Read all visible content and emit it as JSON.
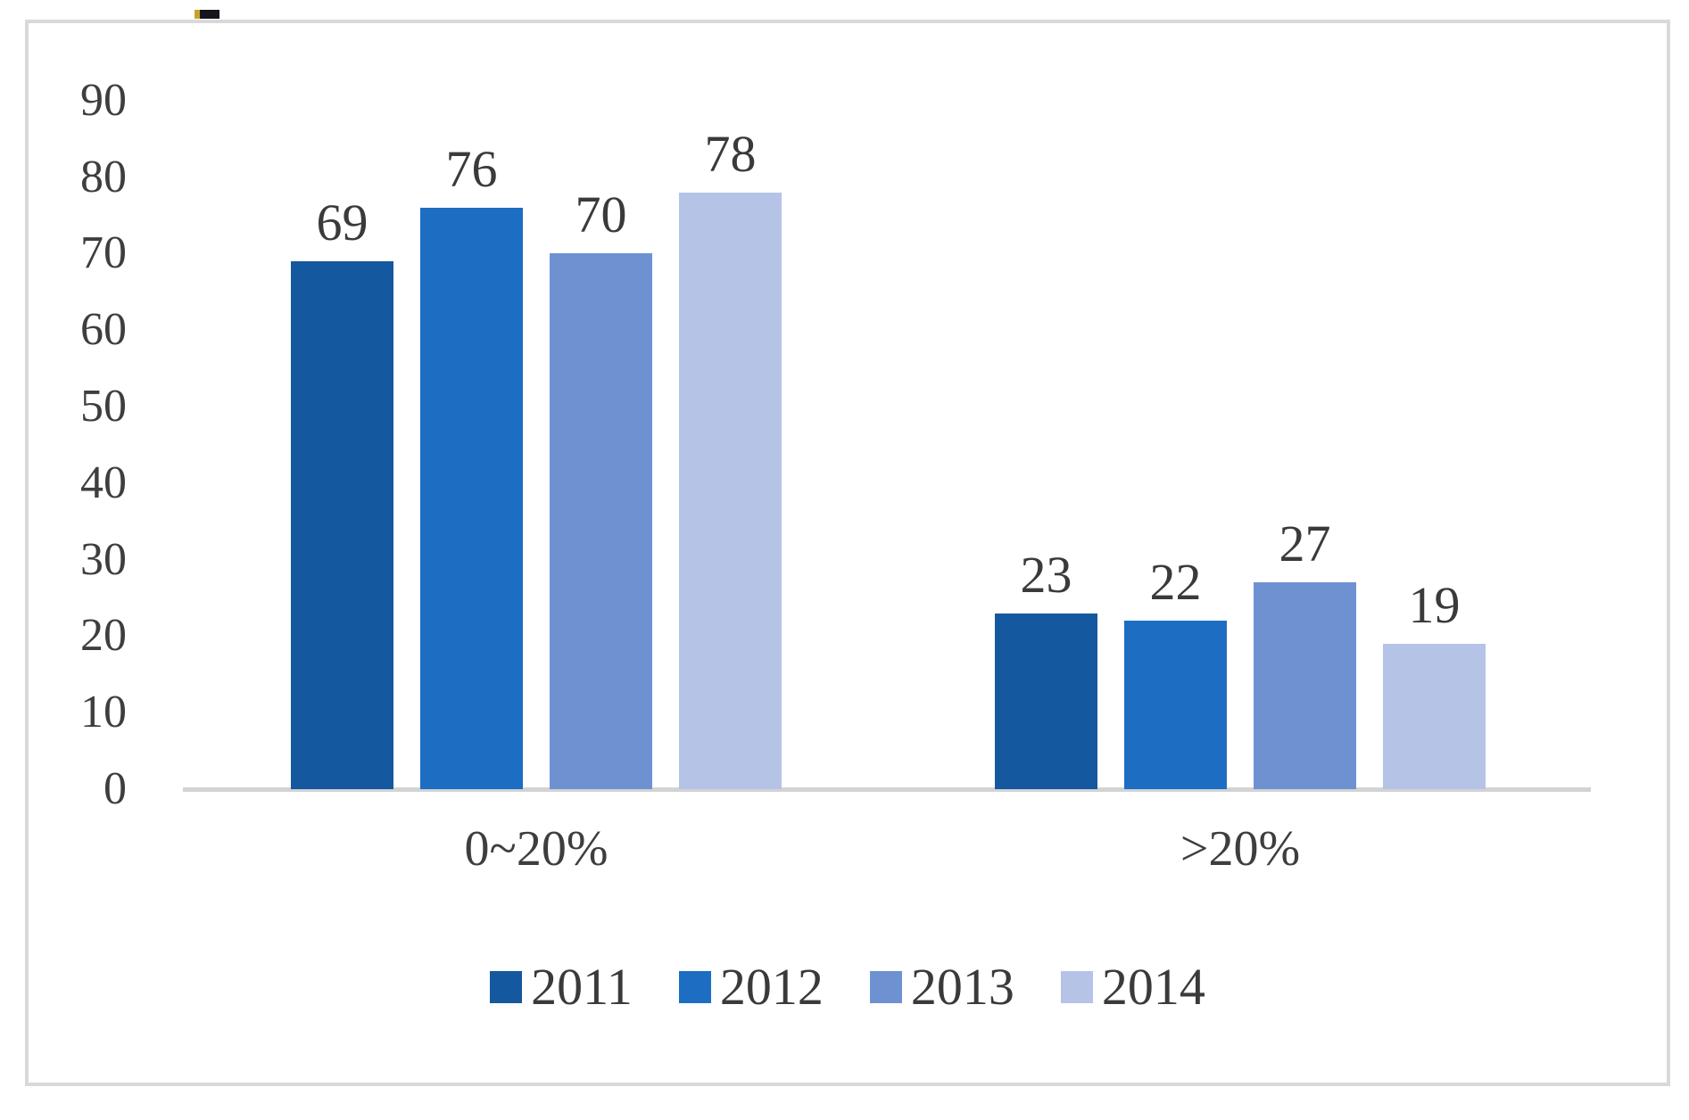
{
  "chart_data": {
    "type": "bar",
    "title": "",
    "xlabel": "",
    "ylabel": "",
    "categories": [
      "0~20%",
      ">20%"
    ],
    "series": [
      {
        "name": "2011",
        "color": "#14589F",
        "values": [
          69,
          23
        ]
      },
      {
        "name": "2012",
        "color": "#1D6EC3",
        "values": [
          76,
          22
        ]
      },
      {
        "name": "2013",
        "color": "#6E91D2",
        "values": [
          70,
          27
        ]
      },
      {
        "name": "2014",
        "color": "#B5C3E7",
        "values": [
          78,
          19
        ]
      }
    ],
    "y_ticks": [
      0,
      10,
      20,
      30,
      40,
      50,
      60,
      70,
      80,
      90
    ],
    "ylim": [
      0,
      90
    ],
    "grid": false,
    "legend_position": "bottom",
    "data_labels_shown": true,
    "frame_color": "#d9d9d9",
    "axis_line_color": "#d3d3d3",
    "text_color": "#3a3a3a"
  }
}
